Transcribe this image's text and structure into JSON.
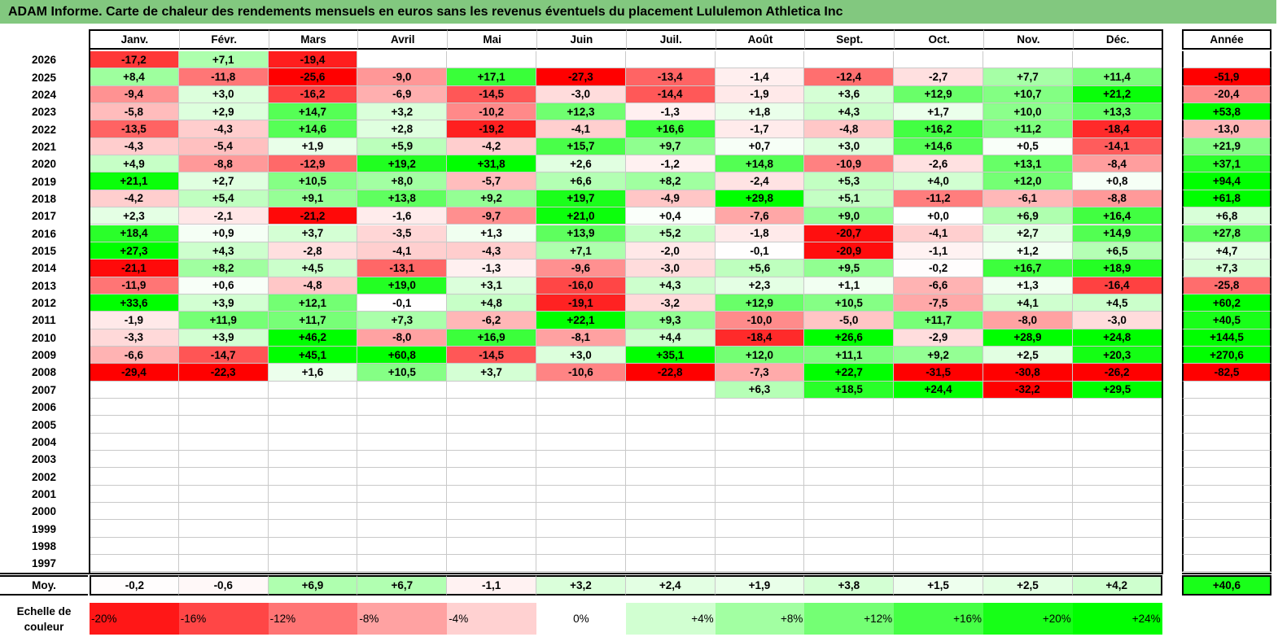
{
  "title": "ADAM Informe. Carte de chaleur des rendements mensuels en euros sans les revenus éventuels du placement Lululemon Athletica Inc",
  "chart_data": {
    "type": "heatmap",
    "title": "ADAM Informe. Carte de chaleur des rendements mensuels en euros sans les revenus éventuels du placement Lululemon Athletica Inc",
    "months": [
      "Janv.",
      "Févr.",
      "Mars",
      "Avril",
      "Mai",
      "Juin",
      "Juil.",
      "Août",
      "Sept.",
      "Oct.",
      "Nov.",
      "Déc."
    ],
    "year_header": "Année",
    "rows": [
      {
        "year": "2026",
        "values": [
          "-17,2",
          "+7,1",
          "-19,4",
          "",
          "",
          "",
          "",
          "",
          "",
          "",
          "",
          ""
        ],
        "annual": ""
      },
      {
        "year": "2025",
        "values": [
          "+8,4",
          "-11,8",
          "-25,6",
          "-9,0",
          "+17,1",
          "-27,3",
          "-13,4",
          "-1,4",
          "-12,4",
          "-2,7",
          "+7,7",
          "+11,4"
        ],
        "annual": "-51,9"
      },
      {
        "year": "2024",
        "values": [
          "-9,4",
          "+3,0",
          "-16,2",
          "-6,9",
          "-14,5",
          "-3,0",
          "-14,4",
          "-1,9",
          "+3,6",
          "+12,9",
          "+10,7",
          "+21,2"
        ],
        "annual": "-20,4"
      },
      {
        "year": "2023",
        "values": [
          "-5,8",
          "+2,9",
          "+14,7",
          "+3,2",
          "-10,2",
          "+12,3",
          "-1,3",
          "+1,8",
          "+4,3",
          "+1,7",
          "+10,0",
          "+13,3"
        ],
        "annual": "+53,8"
      },
      {
        "year": "2022",
        "values": [
          "-13,5",
          "-4,3",
          "+14,6",
          "+2,8",
          "-19,2",
          "-4,1",
          "+16,6",
          "-1,7",
          "-4,8",
          "+16,2",
          "+11,2",
          "-18,4"
        ],
        "annual": "-13,0"
      },
      {
        "year": "2021",
        "values": [
          "-4,3",
          "-5,4",
          "+1,9",
          "+5,9",
          "-4,2",
          "+15,7",
          "+9,7",
          "+0,7",
          "+3,0",
          "+14,6",
          "+0,5",
          "-14,1"
        ],
        "annual": "+21,9"
      },
      {
        "year": "2020",
        "values": [
          "+4,9",
          "-8,8",
          "-12,9",
          "+19,2",
          "+31,8",
          "+2,6",
          "-1,2",
          "+14,8",
          "-10,9",
          "-2,6",
          "+13,1",
          "-8,4"
        ],
        "annual": "+37,1"
      },
      {
        "year": "2019",
        "values": [
          "+21,1",
          "+2,7",
          "+10,5",
          "+8,0",
          "-5,7",
          "+6,6",
          "+8,2",
          "-2,4",
          "+5,3",
          "+4,0",
          "+12,0",
          "+0,8"
        ],
        "annual": "+94,4"
      },
      {
        "year": "2018",
        "values": [
          "-4,2",
          "+5,4",
          "+9,1",
          "+13,8",
          "+9,2",
          "+19,7",
          "-4,9",
          "+29,8",
          "+5,1",
          "-11,2",
          "-6,1",
          "-8,8"
        ],
        "annual": "+61,8"
      },
      {
        "year": "2017",
        "values": [
          "+2,3",
          "-2,1",
          "-21,2",
          "-1,6",
          "-9,7",
          "+21,0",
          "+0,4",
          "-7,6",
          "+9,0",
          "+0,0",
          "+6,9",
          "+16,4"
        ],
        "annual": "+6,8"
      },
      {
        "year": "2016",
        "values": [
          "+18,4",
          "+0,9",
          "+3,7",
          "-3,5",
          "+1,3",
          "+13,9",
          "+5,2",
          "-1,8",
          "-20,7",
          "-4,1",
          "+2,7",
          "+14,9"
        ],
        "annual": "+27,8"
      },
      {
        "year": "2015",
        "values": [
          "+27,3",
          "+4,3",
          "-2,8",
          "-4,1",
          "-4,3",
          "+7,1",
          "-2,0",
          "-0,1",
          "-20,9",
          "-1,1",
          "+1,2",
          "+6,5"
        ],
        "annual": "+4,7"
      },
      {
        "year": "2014",
        "values": [
          "-21,1",
          "+8,2",
          "+4,5",
          "-13,1",
          "-1,3",
          "-9,6",
          "-3,0",
          "+5,6",
          "+9,5",
          "-0,2",
          "+16,7",
          "+18,9"
        ],
        "annual": "+7,3"
      },
      {
        "year": "2013",
        "values": [
          "-11,9",
          "+0,6",
          "-4,8",
          "+19,0",
          "+3,1",
          "-16,0",
          "+4,3",
          "+2,3",
          "+1,1",
          "-6,6",
          "+1,3",
          "-16,4"
        ],
        "annual": "-25,8"
      },
      {
        "year": "2012",
        "values": [
          "+33,6",
          "+3,9",
          "+12,1",
          "-0,1",
          "+4,8",
          "-19,1",
          "-3,2",
          "+12,9",
          "+10,5",
          "-7,5",
          "+4,1",
          "+4,5"
        ],
        "annual": "+60,2"
      },
      {
        "year": "2011",
        "values": [
          "-1,9",
          "+11,9",
          "+11,7",
          "+7,3",
          "-6,2",
          "+22,1",
          "+9,3",
          "-10,0",
          "-5,0",
          "+11,7",
          "-8,0",
          "-3,0"
        ],
        "annual": "+40,5"
      },
      {
        "year": "2010",
        "values": [
          "-3,3",
          "+3,9",
          "+46,2",
          "-8,0",
          "+16,9",
          "-8,1",
          "+4,4",
          "-18,4",
          "+26,6",
          "-2,9",
          "+28,9",
          "+24,8"
        ],
        "annual": "+144,5"
      },
      {
        "year": "2009",
        "values": [
          "-6,6",
          "-14,7",
          "+45,1",
          "+60,8",
          "-14,5",
          "+3,0",
          "+35,1",
          "+12,0",
          "+11,1",
          "+9,2",
          "+2,5",
          "+20,3"
        ],
        "annual": "+270,6"
      },
      {
        "year": "2008",
        "values": [
          "-29,4",
          "-22,3",
          "+1,6",
          "+10,5",
          "+3,7",
          "-10,6",
          "-22,8",
          "-7,3",
          "+22,7",
          "-31,5",
          "-30,8",
          "-26,2"
        ],
        "annual": "-82,5"
      },
      {
        "year": "2007",
        "values": [
          "",
          "",
          "",
          "",
          "",
          "",
          "",
          "+6,3",
          "+18,5",
          "+24,4",
          "-32,2",
          "+29,5"
        ],
        "annual": ""
      },
      {
        "year": "2006",
        "values": [
          "",
          "",
          "",
          "",
          "",
          "",
          "",
          "",
          "",
          "",
          "",
          ""
        ],
        "annual": ""
      },
      {
        "year": "2005",
        "values": [
          "",
          "",
          "",
          "",
          "",
          "",
          "",
          "",
          "",
          "",
          "",
          ""
        ],
        "annual": ""
      },
      {
        "year": "2004",
        "values": [
          "",
          "",
          "",
          "",
          "",
          "",
          "",
          "",
          "",
          "",
          "",
          ""
        ],
        "annual": ""
      },
      {
        "year": "2003",
        "values": [
          "",
          "",
          "",
          "",
          "",
          "",
          "",
          "",
          "",
          "",
          "",
          ""
        ],
        "annual": ""
      },
      {
        "year": "2002",
        "values": [
          "",
          "",
          "",
          "",
          "",
          "",
          "",
          "",
          "",
          "",
          "",
          ""
        ],
        "annual": ""
      },
      {
        "year": "2001",
        "values": [
          "",
          "",
          "",
          "",
          "",
          "",
          "",
          "",
          "",
          "",
          "",
          ""
        ],
        "annual": ""
      },
      {
        "year": "2000",
        "values": [
          "",
          "",
          "",
          "",
          "",
          "",
          "",
          "",
          "",
          "",
          "",
          ""
        ],
        "annual": ""
      },
      {
        "year": "1999",
        "values": [
          "",
          "",
          "",
          "",
          "",
          "",
          "",
          "",
          "",
          "",
          "",
          ""
        ],
        "annual": ""
      },
      {
        "year": "1998",
        "values": [
          "",
          "",
          "",
          "",
          "",
          "",
          "",
          "",
          "",
          "",
          "",
          ""
        ],
        "annual": ""
      },
      {
        "year": "1997",
        "values": [
          "",
          "",
          "",
          "",
          "",
          "",
          "",
          "",
          "",
          "",
          "",
          ""
        ],
        "annual": ""
      }
    ],
    "average": {
      "label": "Moy.",
      "values": [
        "-0,2",
        "-0,6",
        "+6,9",
        "+6,7",
        "-1,1",
        "+3,2",
        "+2,4",
        "+1,9",
        "+3,8",
        "+1,5",
        "+2,5",
        "+4,2"
      ],
      "annual": "+40,6"
    },
    "scale": {
      "label_line1": "Echelle de",
      "label_line2": "couleur",
      "stops": [
        "-20%",
        "-16%",
        "-12%",
        "-8%",
        "-4%",
        "0%",
        "+4%",
        "+8%",
        "+12%",
        "+16%",
        "+20%",
        "+24%"
      ]
    },
    "colors": {
      "title_bar": "#82c87f",
      "negative_max": "#ff0000",
      "positive_max": "#00ff00",
      "neutral": "#ffffff"
    }
  }
}
